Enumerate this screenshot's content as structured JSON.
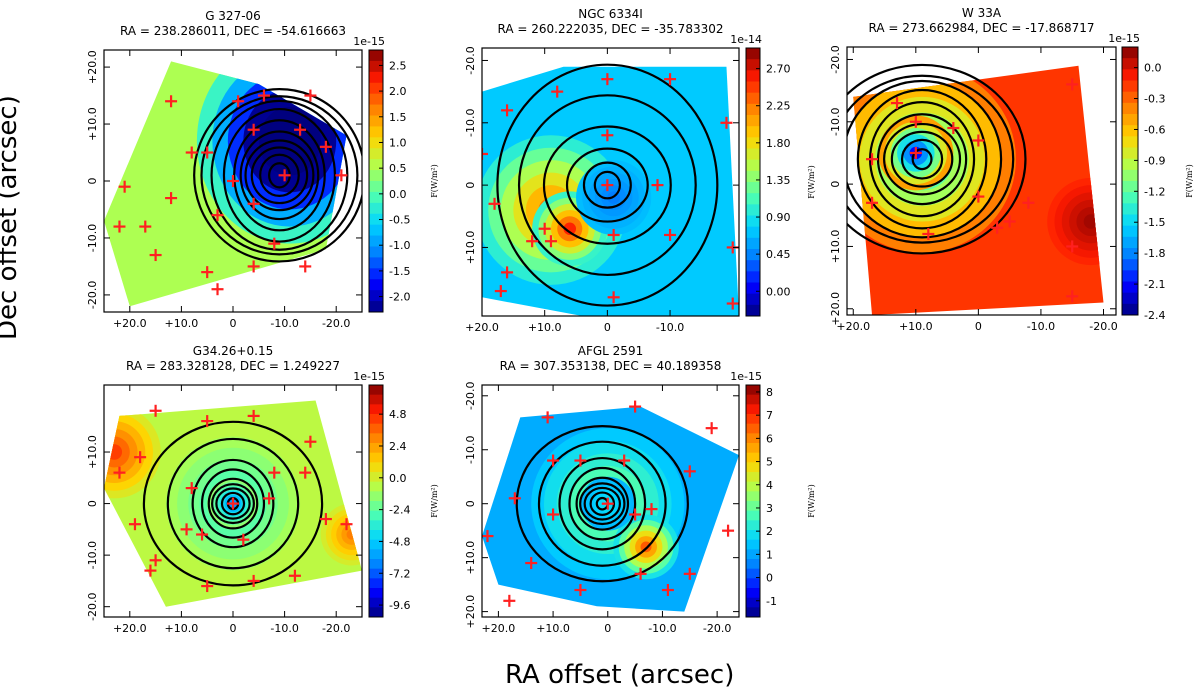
{
  "figure": {
    "ylabel": "Dec offset (arcsec)",
    "xlabel": "RA offset (arcsec)"
  },
  "colormap": [
    "#00007f",
    "#0000ff",
    "#0080ff",
    "#00d4ff",
    "#4dffb2",
    "#b2ff4d",
    "#ffd400",
    "#ff8000",
    "#ff1a00",
    "#7f0000"
  ],
  "marker_color": "#ff2020",
  "contour_color": "#000000",
  "chart_data": [
    {
      "type": "contour-map",
      "name": "G 327-06",
      "title": "G 327-06",
      "subtitle": "RA = 238.286011, DEC = -54.616663",
      "xlim": [
        25,
        -25
      ],
      "ylim": [
        23,
        -23
      ],
      "xticks": [
        20,
        10,
        0,
        -10,
        -20
      ],
      "xtick_labels": [
        "+20.0",
        "+10.0",
        "0",
        "-10.0",
        "-20.0"
      ],
      "yticks": [
        -20,
        -10,
        0,
        10,
        20
      ],
      "ytick_labels": [
        "-20.0",
        "-10.0",
        "0",
        "+10.0",
        "+20.0"
      ],
      "polygon": [
        [
          20,
          -22
        ],
        [
          -18,
          -12
        ],
        [
          -22,
          8
        ],
        [
          -5,
          17
        ],
        [
          12,
          21
        ],
        [
          25,
          -7
        ]
      ],
      "background_level": 0.55,
      "colorbar": {
        "exponent_label": "1e-15",
        "ticks": [
          2.5,
          2.0,
          1.5,
          1.0,
          0.5,
          0.0,
          -0.5,
          -1.0,
          -1.5,
          -2.0
        ],
        "tick_labels": [
          "2.5",
          "2.0",
          "1.5",
          "1.0",
          "0.5",
          "0.0",
          "-0.5",
          "-1.0",
          "-1.5",
          "-2.0"
        ],
        "range": [
          -2.3,
          2.8
        ],
        "label": "F(W/m²)"
      },
      "blobs": [
        {
          "x": -8,
          "y": 3,
          "r": 11,
          "level": -0.5
        },
        {
          "x": -11,
          "y": 7,
          "r": 18,
          "level": -0.25
        }
      ],
      "contour_center": [
        -9,
        1
      ],
      "contour_radii": [
        2,
        3.5,
        5,
        6.5,
        8,
        9.5,
        11,
        12.5,
        14,
        16
      ],
      "markers": [
        [
          -10,
          1
        ],
        [
          0,
          0
        ],
        [
          5,
          5
        ],
        [
          -4,
          9
        ],
        [
          -13,
          9
        ],
        [
          -21,
          1
        ],
        [
          -18,
          6
        ],
        [
          -15,
          15
        ],
        [
          12,
          -3
        ],
        [
          8,
          5
        ],
        [
          3,
          -6
        ],
        [
          -8,
          -11
        ],
        [
          -4,
          -4
        ],
        [
          5,
          -16
        ],
        [
          -4,
          -15
        ],
        [
          -14,
          -15
        ],
        [
          3,
          -19
        ],
        [
          -6,
          15
        ],
        [
          -1,
          14
        ],
        [
          17,
          -8
        ],
        [
          21,
          -1
        ],
        [
          12,
          14
        ],
        [
          15,
          -13
        ],
        [
          22,
          -8
        ]
      ]
    },
    {
      "type": "contour-map",
      "name": "NGC 6334I",
      "title": "NGC 6334I",
      "subtitle": "RA = 260.222035, DEC = -35.783302",
      "xlim": [
        20,
        -21
      ],
      "ylim": [
        -22,
        21
      ],
      "xticks": [
        20,
        10,
        0,
        -10
      ],
      "xtick_labels": [
        "+20.0",
        "+10.0",
        "0",
        "-10.0"
      ],
      "yticks": [
        -20,
        -10,
        0,
        10
      ],
      "ytick_labels": [
        "-20.0",
        "-10.0",
        "0",
        "+10.0"
      ],
      "polygon": [
        [
          20,
          -15
        ],
        [
          7,
          -19
        ],
        [
          -19,
          -19
        ],
        [
          -21,
          21
        ],
        [
          4,
          21
        ],
        [
          20,
          18
        ]
      ],
      "background_level": 0.32,
      "colorbar": {
        "exponent_label": "1e-14",
        "ticks": [
          2.7,
          2.25,
          1.8,
          1.35,
          0.9,
          0.45,
          0.0
        ],
        "tick_labels": [
          "2.70",
          "2.25",
          "1.80",
          "1.35",
          "0.90",
          "0.45",
          "0.00"
        ],
        "range": [
          -0.3,
          2.95
        ],
        "label": "F(W/m²)"
      },
      "blobs": [
        {
          "x": 9,
          "y": 4,
          "r": 12,
          "level": 0.78
        },
        {
          "x": 6,
          "y": 7,
          "r": 6,
          "level": 0.88
        },
        {
          "x": -1,
          "y": 2,
          "r": 6,
          "level": 0.22
        }
      ],
      "contour_center": [
        0,
        0
      ],
      "contour_radii": [
        2,
        3.5,
        6,
        10,
        15,
        19
      ],
      "markers": [
        [
          0,
          0
        ],
        [
          0,
          -8
        ],
        [
          0,
          -17
        ],
        [
          8,
          -15
        ],
        [
          -10,
          -17
        ],
        [
          20,
          -5
        ],
        [
          18,
          3
        ],
        [
          12,
          9
        ],
        [
          10,
          7
        ],
        [
          -1,
          8
        ],
        [
          -1,
          18
        ],
        [
          -10,
          8
        ],
        [
          -20,
          10
        ],
        [
          -20,
          19
        ],
        [
          -8,
          0
        ],
        [
          9,
          9
        ],
        [
          16,
          14
        ],
        [
          16,
          -12
        ],
        [
          -19,
          -10
        ],
        [
          17,
          17
        ]
      ]
    },
    {
      "type": "contour-map",
      "name": "W 33A",
      "title": "W 33A",
      "subtitle": "RA = 273.662984, DEC = -17.868717",
      "xlim": [
        21,
        -22
      ],
      "ylim": [
        -22,
        21
      ],
      "xticks": [
        20,
        10,
        0,
        -10,
        -20
      ],
      "xtick_labels": [
        "+20.0",
        "+10.0",
        "0",
        "-10.0",
        "-20.0"
      ],
      "yticks": [
        -20,
        -10,
        0,
        10,
        20
      ],
      "ytick_labels": [
        "-20.0",
        "-10.0",
        "0",
        "+10.0",
        "+20.0"
      ],
      "polygon": [
        [
          20,
          -14
        ],
        [
          -16,
          -19
        ],
        [
          -20,
          19
        ],
        [
          17,
          21
        ]
      ],
      "background_level": 0.86,
      "colorbar": {
        "exponent_label": "1e-15",
        "ticks": [
          0.0,
          -0.3,
          -0.6,
          -0.9,
          -1.2,
          -1.5,
          -1.8,
          -2.1,
          -2.4
        ],
        "tick_labels": [
          "0.0",
          "-0.3",
          "-0.6",
          "-0.9",
          "-1.2",
          "-1.5",
          "-1.8",
          "-2.1",
          "-2.4"
        ],
        "range": [
          -2.4,
          0.2
        ],
        "label": "F(W/m²)"
      },
      "blobs": [
        {
          "x": 9,
          "y": -4,
          "r": 15,
          "level": 0.38
        },
        {
          "x": 10,
          "y": -5,
          "r": 6,
          "level": 0.12
        },
        {
          "x": -18,
          "y": 6,
          "r": 7,
          "level": 0.97
        }
      ],
      "contour_center": [
        9,
        -4
      ],
      "contour_radii": [
        1.5,
        3,
        4.5,
        6,
        7.5,
        9,
        10.5,
        12,
        13.5,
        16
      ],
      "markers": [
        [
          10,
          -5
        ],
        [
          17,
          -4
        ],
        [
          10,
          -10
        ],
        [
          0,
          -7
        ],
        [
          4,
          -9
        ],
        [
          -3,
          7
        ],
        [
          -8,
          3
        ],
        [
          13,
          -13
        ],
        [
          -15,
          -16
        ],
        [
          -15,
          10
        ],
        [
          17,
          3
        ],
        [
          -5,
          6
        ],
        [
          0,
          2
        ],
        [
          8,
          8
        ],
        [
          -15,
          18
        ]
      ]
    },
    {
      "type": "contour-map",
      "name": "G34.26+0.15",
      "title": "G34.26+0.15",
      "subtitle": "RA = 283.328128, DEC = 1.249227",
      "xlim": [
        25,
        -25
      ],
      "ylim": [
        23,
        -22
      ],
      "xticks": [
        20,
        10,
        0,
        -10,
        -20
      ],
      "xtick_labels": [
        "+20.0",
        "+10.0",
        "0",
        "-10.0",
        "-20.0"
      ],
      "yticks": [
        -20,
        -10,
        0,
        10
      ],
      "ytick_labels": [
        "-20.0",
        "-10.0",
        "0",
        "+10.0"
      ],
      "polygon": [
        [
          13,
          -20
        ],
        [
          -25,
          -13
        ],
        [
          -16,
          20
        ],
        [
          22,
          17
        ],
        [
          25,
          3
        ]
      ],
      "background_level": 0.57,
      "colorbar": {
        "exponent_label": "1e-15",
        "ticks": [
          4.8,
          2.4,
          0.0,
          -2.4,
          -4.8,
          -7.2,
          -9.6
        ],
        "tick_labels": [
          "4.8",
          "2.4",
          "0.0",
          "-2.4",
          "-4.8",
          "-7.2",
          "-9.6"
        ],
        "range": [
          -10.5,
          7.0
        ],
        "label": "F(W/m²)"
      },
      "blobs": [
        {
          "x": 0,
          "y": 0,
          "r": 13,
          "level": 0.4
        },
        {
          "x": 0,
          "y": 0,
          "r": 5,
          "level": 0.25
        },
        {
          "x": 23,
          "y": 10,
          "r": 9,
          "level": 0.85
        },
        {
          "x": -23,
          "y": -6,
          "r": 6,
          "level": 0.78
        }
      ],
      "contour_center": [
        0,
        0
      ],
      "contour_radii": [
        1,
        2,
        3,
        4,
        5,
        6.5,
        8,
        12,
        16
      ],
      "markers": [
        [
          0,
          0
        ],
        [
          -2,
          -7
        ],
        [
          6,
          -6
        ],
        [
          9,
          -5
        ],
        [
          8,
          3
        ],
        [
          -7,
          1
        ],
        [
          -8,
          6
        ],
        [
          -14,
          6
        ],
        [
          -15,
          12
        ],
        [
          -22,
          -4
        ],
        [
          5,
          -16
        ],
        [
          -4,
          -15
        ],
        [
          -12,
          -14
        ],
        [
          15,
          -11
        ],
        [
          19,
          -4
        ],
        [
          22,
          6
        ],
        [
          18,
          9
        ],
        [
          15,
          18
        ],
        [
          5,
          16
        ],
        [
          -4,
          17
        ],
        [
          -18,
          -3
        ],
        [
          16,
          -13
        ]
      ]
    },
    {
      "type": "contour-map",
      "name": "AFGL 2591",
      "title": "AFGL 2591",
      "subtitle": "RA = 307.353138, DEC = 40.189358",
      "xlim": [
        23,
        -24
      ],
      "ylim": [
        -22,
        21
      ],
      "xticks": [
        20,
        10,
        0,
        -10,
        -20
      ],
      "xtick_labels": [
        "+20.0",
        "+10.0",
        "0",
        "-10.0",
        "-20.0"
      ],
      "yticks": [
        -20,
        -10,
        0,
        10,
        20
      ],
      "ytick_labels": [
        "-20.0",
        "-10.0",
        "0",
        "+10.0",
        "+20.0"
      ],
      "polygon": [
        [
          16,
          -16
        ],
        [
          -6,
          -18
        ],
        [
          -24,
          -9
        ],
        [
          -14,
          20
        ],
        [
          2,
          19
        ],
        [
          20,
          15
        ],
        [
          23,
          6
        ]
      ],
      "background_level": 0.28,
      "colorbar": {
        "exponent_label": "1e-15",
        "ticks": [
          8,
          7,
          6,
          5,
          4,
          3,
          2,
          1,
          0,
          -1
        ],
        "tick_labels": [
          "8",
          "7",
          "6",
          "5",
          "4",
          "3",
          "2",
          "1",
          "0",
          "-1"
        ],
        "range": [
          -1.7,
          8.3
        ],
        "label": "F(W/m²)"
      },
      "blobs": [
        {
          "x": 0,
          "y": 0,
          "r": 14,
          "level": 0.52
        },
        {
          "x": -7,
          "y": 8,
          "r": 6,
          "level": 0.82
        },
        {
          "x": 0,
          "y": 0,
          "r": 5,
          "level": 0.36
        }
      ],
      "contour_center": [
        1,
        0
      ],
      "contour_radii": [
        1,
        2,
        3,
        4,
        5,
        6.5,
        8,
        11,
        14.5
      ],
      "markers": [
        [
          0,
          0
        ],
        [
          5,
          -8
        ],
        [
          10,
          -8
        ],
        [
          10,
          2
        ],
        [
          14,
          11
        ],
        [
          18,
          18
        ],
        [
          22,
          6
        ],
        [
          5,
          16
        ],
        [
          -6,
          13
        ],
        [
          -11,
          16
        ],
        [
          -15,
          13
        ],
        [
          -5,
          2
        ],
        [
          -8,
          1
        ],
        [
          -3,
          -8
        ],
        [
          -5,
          -18
        ],
        [
          -15,
          -6
        ],
        [
          -19,
          -14
        ],
        [
          17,
          -1
        ],
        [
          11,
          -16
        ],
        [
          -22,
          5
        ]
      ]
    }
  ]
}
